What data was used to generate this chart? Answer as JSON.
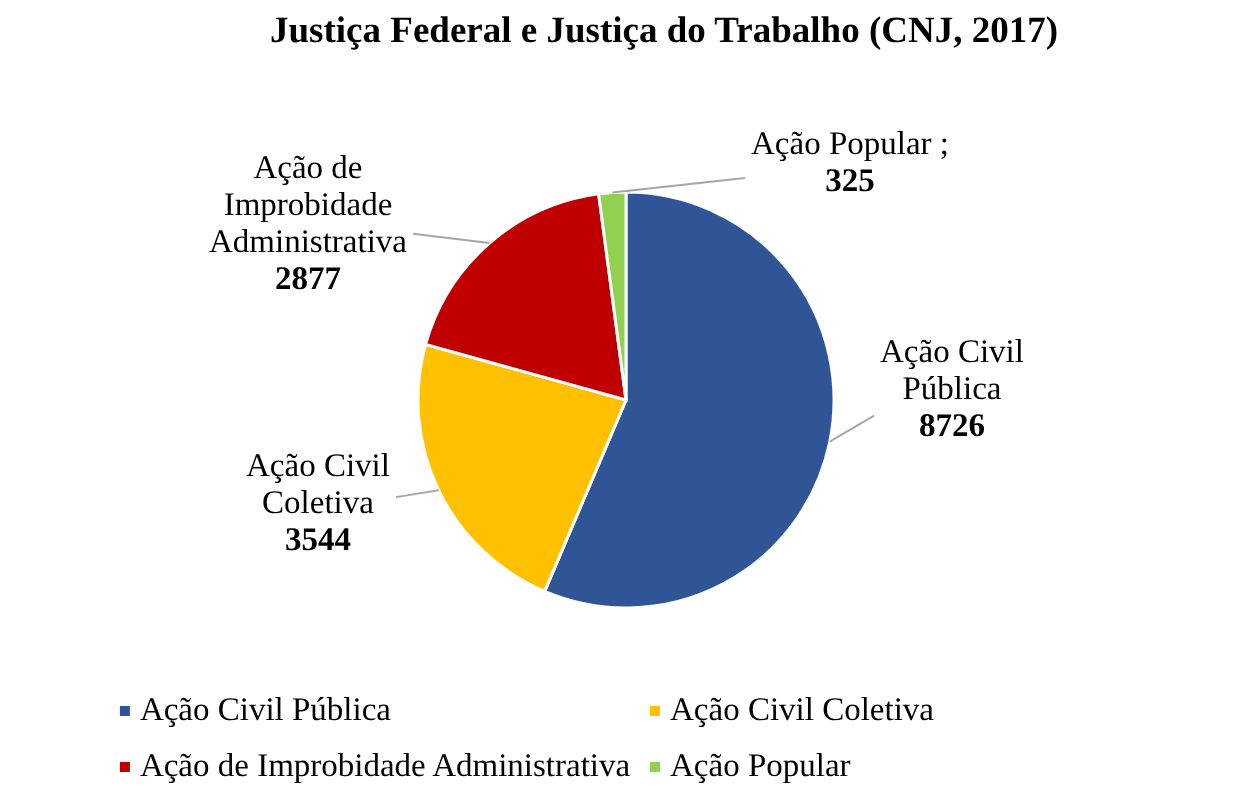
{
  "chart_data": {
    "type": "pie",
    "title": "Justiça Federal e Justiça do Trabalho (CNJ, 2017)",
    "categories": [
      "Ação Civil Pública",
      "Ação Civil Coletiva",
      "Ação de Improbidade Administrativa",
      "Ação Popular"
    ],
    "values": [
      8726,
      3544,
      2877,
      325
    ],
    "colors": [
      "#2f5597",
      "#ffc000",
      "#c00000",
      "#92d050"
    ],
    "value_labels": [
      "Ação Civil Pública 8726",
      "Ação Civil Coletiva 3544",
      "Ação de Improbidade Administrativa 2877",
      "Ação Popular ; 325"
    ],
    "legend": "bottom"
  }
}
